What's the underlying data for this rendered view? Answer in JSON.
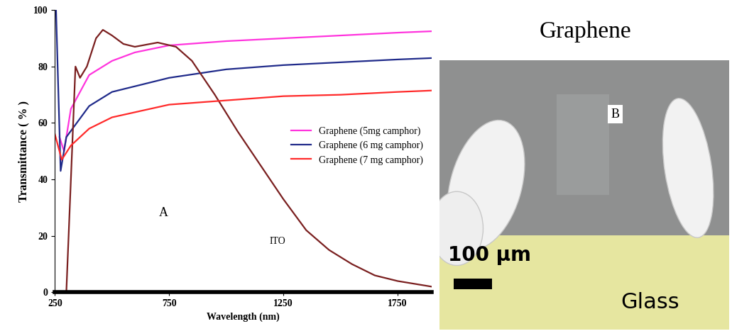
{
  "chart_data": {
    "type": "line",
    "x_label": "Wavelength (nm)",
    "y_label": "Transmittance ( % )",
    "xlim": [
      250,
      1900
    ],
    "xticks": [
      250,
      750,
      1250,
      1750
    ],
    "ylim": [
      0,
      100
    ],
    "yticks": [
      0,
      20,
      40,
      60,
      80,
      100
    ],
    "legend": "center right",
    "grid": false,
    "series": [
      {
        "name": "Graphene (5mg camphor)",
        "color": "#ff33dd",
        "x": [
          270,
          290,
          320,
          400,
          500,
          600,
          750,
          1000,
          1250,
          1500,
          1750,
          1900
        ],
        "values": [
          55,
          50,
          65,
          77,
          82,
          85,
          87.5,
          89,
          90,
          91,
          92,
          92.5
        ]
      },
      {
        "name": "Graphene (6 mg camphor)",
        "color": "#1f2a8a",
        "x": [
          255,
          275,
          300,
          400,
          500,
          750,
          1000,
          1250,
          1500,
          1750,
          1900
        ],
        "values": [
          100,
          43,
          55,
          66,
          71,
          76,
          79,
          80.5,
          81.5,
          82.5,
          83
        ]
      },
      {
        "color": "#7a1f1f",
        "x": [
          300,
          320,
          340,
          360,
          390,
          430,
          460,
          500,
          550,
          600,
          700,
          780,
          850,
          950,
          1050,
          1150,
          1250,
          1350,
          1450,
          1550,
          1650,
          1750,
          1900
        ],
        "values": [
          0,
          40,
          80,
          76,
          80,
          90,
          93,
          91,
          88,
          87,
          88.5,
          87,
          82,
          70,
          57,
          45,
          33,
          22,
          15,
          10,
          6,
          4,
          2
        ]
      },
      {
        "name": "Graphene (7 mg camphor)",
        "color": "#ff2a2a",
        "x": [
          250,
          280,
          320,
          400,
          500,
          750,
          1000,
          1250,
          1500,
          1750,
          1900
        ],
        "values": [
          56,
          47,
          52,
          58,
          62,
          66.5,
          68,
          69.5,
          70,
          71,
          71.5
        ]
      }
    ],
    "annotations": [
      {
        "text": "A",
        "x": 726,
        "y": 28
      },
      {
        "text": "ITO",
        "x": 1226,
        "y": 18
      }
    ]
  },
  "image_panel": {
    "title": "Graphene",
    "label": "B",
    "scale_bar": "100 µm",
    "substrate": "Glass"
  }
}
